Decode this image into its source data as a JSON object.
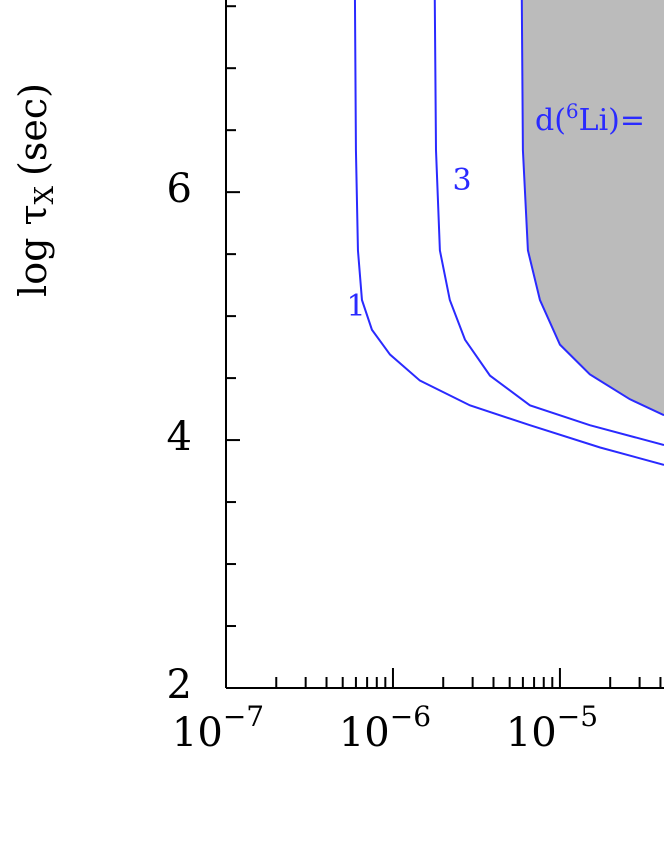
{
  "chart_data": {
    "type": "line",
    "xscale": "log",
    "ylabel": "log τ",
    "ylabel_sub": "X",
    "ylabel_unit": "(sec)",
    "xlim": [
      1e-07,
      4.2e-05
    ],
    "ylim": [
      2,
      7.55
    ],
    "xticks": [
      {
        "value": 1e-07,
        "label": "10",
        "exponent": "−7"
      },
      {
        "value": 1e-06,
        "label": "10",
        "exponent": "−6"
      },
      {
        "value": 1e-05,
        "label": "10",
        "exponent": "−5"
      }
    ],
    "xminor_ticks": [
      2e-07,
      3e-07,
      4e-07,
      5e-07,
      6e-07,
      7e-07,
      8e-07,
      9e-07,
      2e-06,
      3e-06,
      4e-06,
      5e-06,
      6e-06,
      7e-06,
      8e-06,
      9e-06,
      2e-05,
      3e-05,
      4e-05
    ],
    "yticks": [
      2,
      4,
      6
    ],
    "yminor_ticks": [
      2.5,
      3,
      3.5,
      4.5,
      5,
      5.5,
      6.5,
      7,
      7.5
    ],
    "series": [
      {
        "name": "1",
        "color": "#2a2aff",
        "x": [
          5.92e-07,
          6e-07,
          6.17e-07,
          6.52e-07,
          7.48e-07,
          9.6e-07,
          1.45e-06,
          2.89e-06,
          6.61e-06,
          1.74e-05,
          4.2e-05
        ],
        "values": [
          7.55,
          6.34,
          5.53,
          5.13,
          4.89,
          4.69,
          4.48,
          4.28,
          4.12,
          3.94,
          3.8
        ]
      },
      {
        "name": "3",
        "color": "#2a2aff",
        "x": [
          1.78e-06,
          1.81e-06,
          1.91e-06,
          2.19e-06,
          2.7e-06,
          3.81e-06,
          6.61e-06,
          1.51e-05,
          4.2e-05
        ],
        "values": [
          7.55,
          6.34,
          5.53,
          5.13,
          4.81,
          4.52,
          4.28,
          4.12,
          3.96
        ]
      },
      {
        "name": "d(6Li)=",
        "color": "#2a2aff",
        "fill": "#bbbbbb",
        "x": [
          5.91e-06,
          6e-06,
          6.43e-06,
          7.59e-06,
          1e-05,
          1.51e-05,
          2.62e-05,
          4.2e-05
        ],
        "values": [
          7.55,
          6.34,
          5.53,
          5.13,
          4.77,
          4.53,
          4.33,
          4.2
        ]
      }
    ],
    "annotations": [
      {
        "text": "1"
      },
      {
        "text": "3"
      },
      {
        "text": "d(",
        "sup": "6",
        "rest": "Li)="
      }
    ]
  }
}
